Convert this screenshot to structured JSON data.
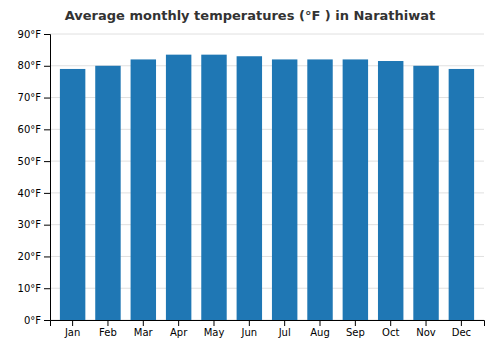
{
  "chart_data": {
    "type": "bar",
    "title": "Average monthly temperatures (°F ) in Narathiwat",
    "categories": [
      "Jan",
      "Feb",
      "Mar",
      "Apr",
      "May",
      "Jun",
      "Jul",
      "Aug",
      "Sep",
      "Oct",
      "Nov",
      "Dec"
    ],
    "values": [
      79,
      80,
      82,
      83.5,
      83.5,
      83,
      82,
      82,
      82,
      81.5,
      80,
      79
    ],
    "ylim": [
      0,
      90
    ],
    "yticks": [
      {
        "value": 0,
        "label": "0°F"
      },
      {
        "value": 10,
        "label": "10°F"
      },
      {
        "value": 20,
        "label": "20°F"
      },
      {
        "value": 30,
        "label": "30°F"
      },
      {
        "value": 40,
        "label": "40°F"
      },
      {
        "value": 50,
        "label": "50°F"
      },
      {
        "value": 60,
        "label": "60°F"
      },
      {
        "value": 70,
        "label": "70°F"
      },
      {
        "value": 80,
        "label": "80°F"
      },
      {
        "value": 90,
        "label": "90°F"
      }
    ],
    "grid": true
  }
}
